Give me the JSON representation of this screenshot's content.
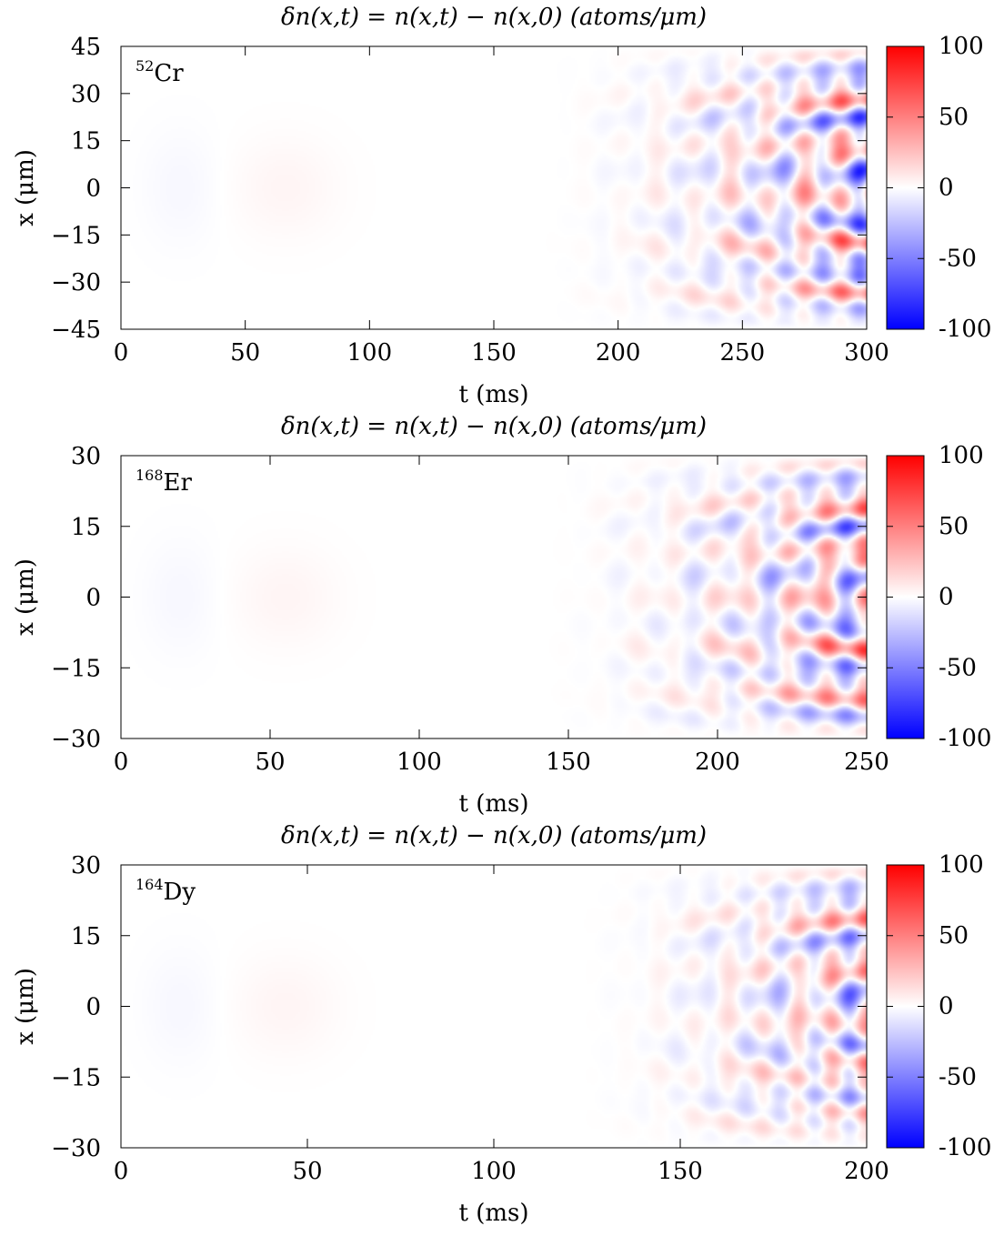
{
  "chart_data": [
    {
      "type": "heatmap",
      "title": "δn(x,t) = n(x,t) − n(x,0)   (atoms/μm)",
      "isotope_mass": "52",
      "isotope_symbol": "Cr",
      "xlabel": "t (ms)",
      "ylabel": "x (μm)",
      "xlim": [
        0,
        300
      ],
      "ylim": [
        -45,
        45
      ],
      "xticks": [
        "0",
        "50",
        "100",
        "150",
        "200",
        "250",
        "300"
      ],
      "yticks": [
        "45",
        "30",
        "15",
        "0",
        "−15",
        "−30",
        "−45"
      ],
      "colorbar": {
        "range": [
          -100,
          100
        ],
        "ticks": [
          "100",
          "50",
          "0",
          "-50",
          "-100"
        ],
        "colors": [
          "#0000ff",
          "#ffffff",
          "#ff0000"
        ]
      }
    },
    {
      "type": "heatmap",
      "title": "δn(x,t) = n(x,t) − n(x,0)   (atoms/μm)",
      "isotope_mass": "168",
      "isotope_symbol": "Er",
      "xlabel": "t (ms)",
      "ylabel": "x (μm)",
      "xlim": [
        0,
        250
      ],
      "ylim": [
        -30,
        30
      ],
      "xticks": [
        "0",
        "50",
        "100",
        "150",
        "200",
        "250"
      ],
      "yticks": [
        "30",
        "15",
        "0",
        "−15",
        "−30"
      ],
      "colorbar": {
        "range": [
          -100,
          100
        ],
        "ticks": [
          "100",
          "50",
          "0",
          "-50",
          "-100"
        ],
        "colors": [
          "#0000ff",
          "#ffffff",
          "#ff0000"
        ]
      }
    },
    {
      "type": "heatmap",
      "title": "δn(x,t) = n(x,t) − n(x,0)   (atoms/μm)",
      "isotope_mass": "164",
      "isotope_symbol": "Dy",
      "xlabel": "t (ms)",
      "ylabel": "x (μm)",
      "xlim": [
        0,
        200
      ],
      "ylim": [
        -30,
        30
      ],
      "xticks": [
        "0",
        "50",
        "100",
        "150",
        "200"
      ],
      "yticks": [
        "30",
        "15",
        "0",
        "−15",
        "−30"
      ],
      "colorbar": {
        "range": [
          -100,
          100
        ],
        "ticks": [
          "100",
          "50",
          "0",
          "-50",
          "-100"
        ],
        "colors": [
          "#0000ff",
          "#ffffff",
          "#ff0000"
        ]
      }
    }
  ]
}
